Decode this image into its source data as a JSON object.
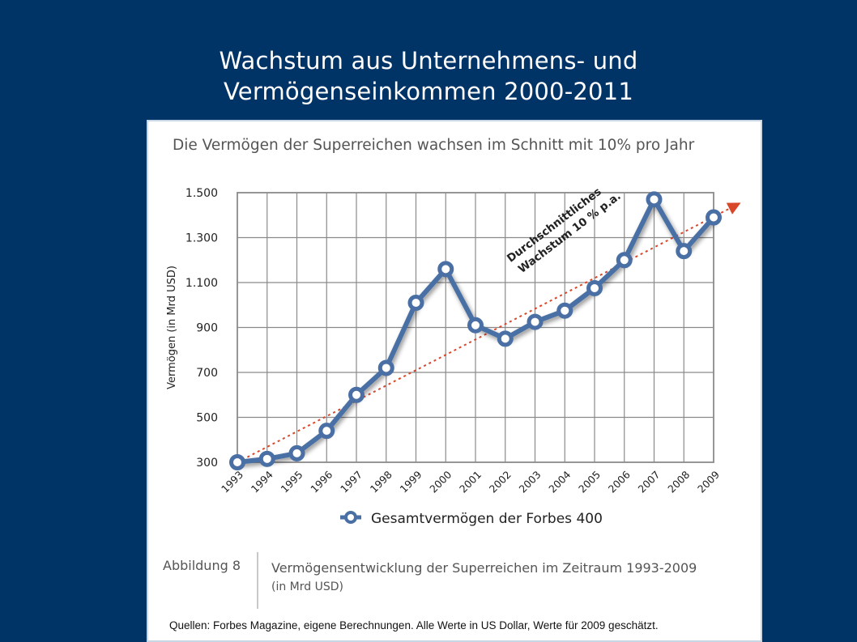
{
  "slide": {
    "title_line1": "Wachstum aus Unternehmens- und",
    "title_line2": "Vermögenseinkommen 2000-2011"
  },
  "chart_data": {
    "type": "line",
    "title": "Die Vermögen der Superreichen wachsen im Schnitt mit 10% pro Jahr",
    "ylabel": "Vermögen (in Mrd USD)",
    "xlabel": "",
    "categories": [
      "1993",
      "1994",
      "1995",
      "1996",
      "1997",
      "1998",
      "1999",
      "2000",
      "2001",
      "2002",
      "2003",
      "2004",
      "2005",
      "2006",
      "2007",
      "2008",
      "2009"
    ],
    "series": [
      {
        "name": "Gesamtvermögen der Forbes 400",
        "values": [
          300,
          315,
          340,
          440,
          600,
          720,
          1010,
          1160,
          910,
          850,
          925,
          975,
          1075,
          1200,
          1470,
          1240,
          1390
        ],
        "color": "#4a6fa5"
      }
    ],
    "trend": {
      "label_line1": "Durchschnittliches",
      "label_line2": "Wachstum 10 % p.a.",
      "start": 300,
      "end": 1420,
      "color": "#d9472b"
    },
    "ylim": [
      300,
      1500
    ],
    "yticks": [
      300,
      500,
      700,
      900,
      1100,
      1300,
      1500
    ],
    "ytick_labels": [
      "300",
      "500",
      "700",
      "900",
      "1.100",
      "1.300",
      "1.500"
    ],
    "grid": true,
    "legend_position": "bottom"
  },
  "footer": {
    "figure_number": "Abbildung 8",
    "caption": "Vermögensentwicklung der Superreichen im Zeitraum 1993-2009",
    "unit": "(in Mrd USD)",
    "sources": "Quellen: Forbes Magazine, eigene Berechnungen. Alle Werte in US Dollar, Werte für 2009 geschätzt."
  }
}
